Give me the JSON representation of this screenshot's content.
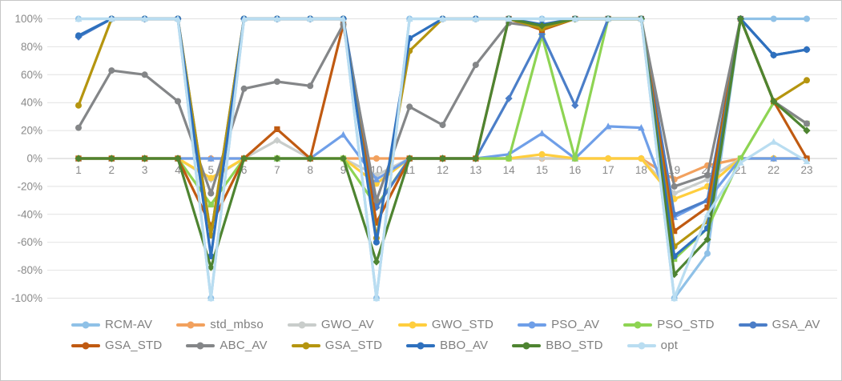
{
  "chart_data": {
    "type": "line",
    "title": "",
    "xlabel": "",
    "ylabel": "",
    "x": [
      1,
      2,
      3,
      4,
      5,
      6,
      7,
      8,
      9,
      10,
      11,
      12,
      13,
      14,
      15,
      16,
      17,
      18,
      19,
      20,
      21,
      22,
      23
    ],
    "ylim": [
      -100,
      100
    ],
    "y_tick_step": 20,
    "y_tick_labels": [
      "100%",
      "80%",
      "60%",
      "40%",
      "20%",
      "0%",
      "-20%",
      "-40%",
      "-60%",
      "-80%",
      "-100%"
    ],
    "grid": true,
    "legend_position": "bottom",
    "grid_color": "#e2e2e2",
    "zero_line_color": "#cdcdcd",
    "axis_text_color": "#8a8a8a",
    "series": [
      {
        "name": "RCM-AV",
        "color": "#8fc1e7",
        "marker": "circle",
        "values": [
          100,
          100,
          100,
          100,
          -100,
          100,
          100,
          100,
          100,
          -100,
          100,
          100,
          100,
          100,
          100,
          100,
          100,
          100,
          -100,
          -68,
          100,
          100,
          100
        ]
      },
      {
        "name": "std_mbso",
        "color": "#f2a15e",
        "marker": "circle",
        "values": [
          0,
          0,
          0,
          0,
          0,
          0,
          0,
          0,
          0,
          0,
          0,
          0,
          0,
          0,
          0,
          0,
          0,
          0,
          -15,
          -5,
          0,
          0,
          0
        ]
      },
      {
        "name": "GWO_AV",
        "color": "#c9cdcb",
        "marker": "diamond",
        "values": [
          0,
          0,
          0,
          0,
          -15,
          0,
          13,
          0,
          0,
          -12,
          0,
          0,
          0,
          0,
          0,
          0,
          0,
          0,
          -25,
          -15,
          0,
          0,
          0
        ]
      },
      {
        "name": "GWO_STD",
        "color": "#ffce3e",
        "marker": "circle",
        "values": [
          0,
          0,
          0,
          0,
          -14,
          0,
          0,
          0,
          0,
          -18,
          0,
          0,
          0,
          0,
          3,
          0,
          0,
          0,
          -29,
          -20,
          0,
          0,
          0
        ]
      },
      {
        "name": "PSO_AV",
        "color": "#6f9fe8",
        "marker": "triangle",
        "values": [
          0,
          0,
          0,
          0,
          0,
          0,
          0,
          0,
          17,
          -15,
          0,
          0,
          0,
          3,
          18,
          0,
          23,
          22,
          -42,
          -30,
          0,
          0,
          0
        ]
      },
      {
        "name": "PSO_STD",
        "color": "#8ed453",
        "marker": "square",
        "values": [
          0,
          0,
          0,
          0,
          -33,
          0,
          0,
          0,
          0,
          -34,
          0,
          0,
          0,
          0,
          88,
          0,
          100,
          100,
          -72,
          -50,
          0,
          40,
          25
        ]
      },
      {
        "name": "GSA_AV",
        "color": "#4b7ec8",
        "marker": "diamond",
        "values": [
          87,
          100,
          100,
          100,
          -55,
          100,
          100,
          100,
          100,
          -35,
          0,
          0,
          0,
          43,
          89,
          38,
          100,
          100,
          -40,
          -30,
          100,
          74,
          78
        ]
      },
      {
        "name": "GSA_STD",
        "color": "#c05a11",
        "marker": "square",
        "values": [
          0,
          0,
          0,
          0,
          -48,
          0,
          21,
          0,
          96,
          -46,
          0,
          0,
          0,
          100,
          92,
          100,
          100,
          100,
          -52,
          -35,
          100,
          41,
          0
        ]
      },
      {
        "name": "ABC_AV",
        "color": "#848688",
        "marker": "circle",
        "values": [
          22,
          63,
          60,
          41,
          -25,
          50,
          55,
          52,
          96,
          -30,
          37,
          24,
          67,
          97,
          94,
          100,
          100,
          100,
          -20,
          -12,
          100,
          41,
          25
        ]
      },
      {
        "name": "GSA_STD",
        "color": "#b5950f",
        "marker": "circle",
        "values": [
          38,
          100,
          100,
          100,
          -55,
          100,
          100,
          100,
          100,
          -57,
          77,
          100,
          100,
          100,
          93,
          100,
          100,
          100,
          -63,
          -45,
          100,
          41,
          56
        ]
      },
      {
        "name": "BBO_AV",
        "color": "#2e70be",
        "marker": "circle",
        "values": [
          88,
          100,
          100,
          100,
          -70,
          100,
          100,
          100,
          100,
          -60,
          86,
          100,
          100,
          100,
          96,
          100,
          100,
          100,
          -70,
          -50,
          100,
          74,
          78
        ]
      },
      {
        "name": "BBO_STD",
        "color": "#4e8431",
        "marker": "diamond",
        "values": [
          0,
          0,
          0,
          0,
          -78,
          0,
          0,
          0,
          0,
          -74,
          0,
          0,
          0,
          100,
          95,
          100,
          100,
          100,
          -83,
          -58,
          100,
          41,
          20
        ]
      },
      {
        "name": "opt",
        "color": "#b9ddf1",
        "marker": "triangle",
        "values": [
          100,
          100,
          100,
          100,
          -100,
          100,
          100,
          100,
          100,
          -100,
          100,
          100,
          100,
          100,
          100,
          100,
          100,
          100,
          -100,
          -40,
          -3,
          12,
          -2
        ]
      }
    ]
  }
}
